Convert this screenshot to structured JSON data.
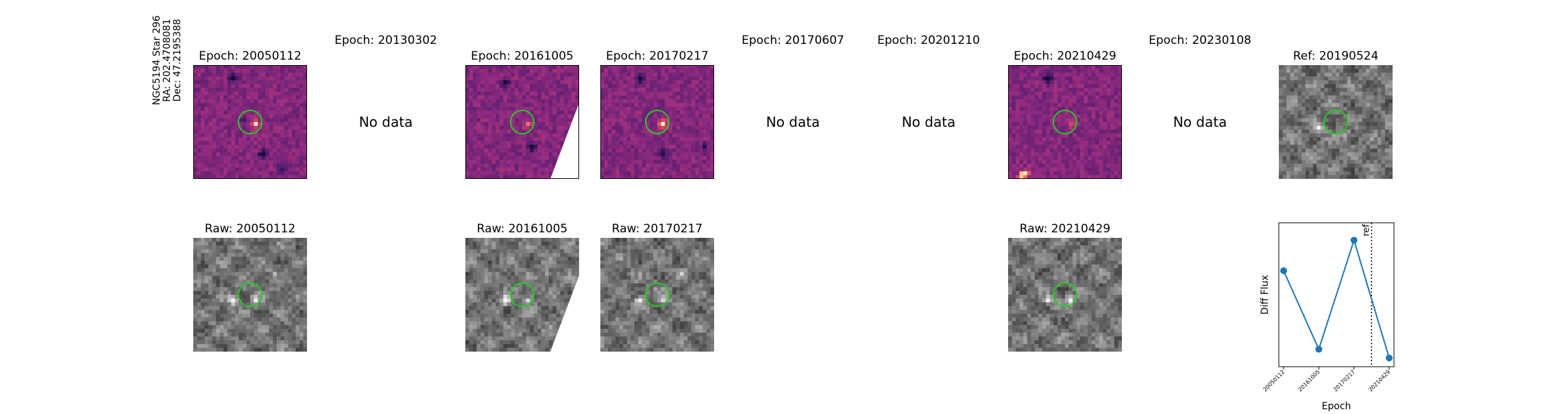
{
  "star": {
    "name": "NGC5194 Star 296",
    "ra": "RA: 202.4708081",
    "dec": "Dec: 47.2195388"
  },
  "no_data_label": "No data",
  "diff_row": [
    {
      "title": "Epoch: 20050112",
      "has_data": true,
      "style": "magma"
    },
    {
      "title": "Epoch: 20130302",
      "has_data": false
    },
    {
      "title": "Epoch: 20161005",
      "has_data": true,
      "style": "magma",
      "masked": true
    },
    {
      "title": "Epoch: 20170217",
      "has_data": true,
      "style": "magma"
    },
    {
      "title": "Epoch: 20170607",
      "has_data": false
    },
    {
      "title": "Epoch: 20201210",
      "has_data": false
    },
    {
      "title": "Epoch: 20210429",
      "has_data": true,
      "style": "magma"
    },
    {
      "title": "Epoch: 20230108",
      "has_data": false
    },
    {
      "title": "Ref: 20190524",
      "has_data": true,
      "style": "gray"
    }
  ],
  "raw_row": [
    {
      "title": "Raw: 20050112",
      "col": 0
    },
    {
      "title": "Raw: 20161005",
      "col": 2,
      "masked": true
    },
    {
      "title": "Raw: 20170217",
      "col": 3
    },
    {
      "title": "Raw: 20210429",
      "col": 6
    }
  ],
  "colors": {
    "circle": "#22cc22",
    "line": "#1f77b4"
  },
  "chart_data": {
    "type": "line",
    "categories": [
      "20050112",
      "20161005",
      "20170217",
      "20210429"
    ],
    "values": [
      0.55,
      -0.35,
      0.9,
      -0.45
    ],
    "xlabel": "Epoch",
    "ylabel": "Diff Flux",
    "ylim": [
      -0.55,
      1.1
    ],
    "ref_label": "ref",
    "ref_position": 2.5,
    "ref_style": "dotted vertical line",
    "grid": false
  }
}
